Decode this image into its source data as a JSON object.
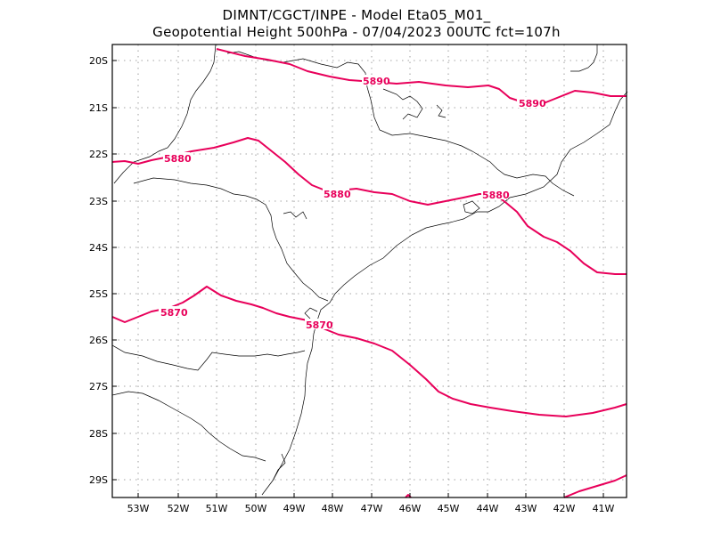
{
  "title": {
    "line1": "DIMNT/CGCT/INPE -  Model Eta05_M01_",
    "line2": "Geopotential Height 500hPa -  07/04/2023 00UTC fct=107h"
  },
  "axes": {
    "lat_labels": [
      "20S",
      "21S",
      "22S",
      "23S",
      "24S",
      "25S",
      "26S",
      "27S",
      "28S",
      "29S"
    ],
    "lon_labels": [
      "53W",
      "52W",
      "51W",
      "50W",
      "49W",
      "48W",
      "47W",
      "46W",
      "45W",
      "44W",
      "43W",
      "42W",
      "41W"
    ]
  },
  "contours": {
    "labels": [
      "5890",
      "5890",
      "5880",
      "5880",
      "5880",
      "5870",
      "5870"
    ]
  },
  "colors": {
    "contour": "#e8005a",
    "coast": "#000000",
    "grid": "#888888"
  }
}
